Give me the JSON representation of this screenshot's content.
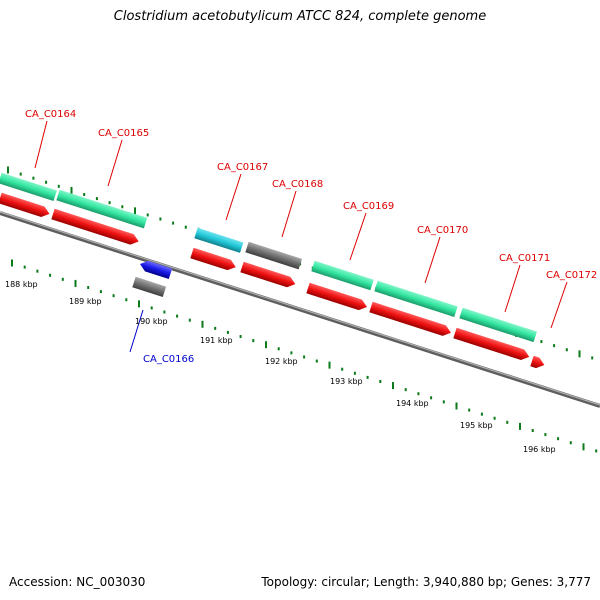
{
  "title": "Clostridium acetobutylicum ATCC 824, complete genome",
  "footer": {
    "accession": "Accession: NC_003030",
    "summary": "Topology: circular; Length: 3,940,880 bp; Genes: 3,777"
  },
  "colors": {
    "cds_forward": "#ee1111",
    "cds_reverse": "#1a1ae6",
    "gene_green": "#33e6a0",
    "gene_cyan": "#20c8d8",
    "gene_gray": "#707070",
    "tick_green": "#0b7a1a",
    "label_red": "#dd0000",
    "label_blue": "#0000cc",
    "backbone": "#888888"
  },
  "kbp_labels": [
    "188 kbp",
    "189 kbp",
    "190 kbp",
    "191 kbp",
    "192 kbp",
    "193 kbp",
    "194 kbp",
    "195 kbp",
    "196 kbp"
  ],
  "genes": [
    {
      "name": "CA_C0164",
      "strand": "forward",
      "feature": "green"
    },
    {
      "name": "CA_C0165",
      "strand": "forward",
      "feature": "green"
    },
    {
      "name": "CA_C0166",
      "strand": "reverse",
      "feature": "gray"
    },
    {
      "name": "CA_C0167",
      "strand": "forward",
      "feature": "cyan"
    },
    {
      "name": "CA_C0168",
      "strand": "forward",
      "feature": "gray"
    },
    {
      "name": "CA_C0169",
      "strand": "forward",
      "feature": "green"
    },
    {
      "name": "CA_C0170",
      "strand": "forward",
      "feature": "green"
    },
    {
      "name": "CA_C0171",
      "strand": "forward",
      "feature": "green"
    },
    {
      "name": "CA_C0172",
      "strand": "forward",
      "feature": "none"
    }
  ]
}
